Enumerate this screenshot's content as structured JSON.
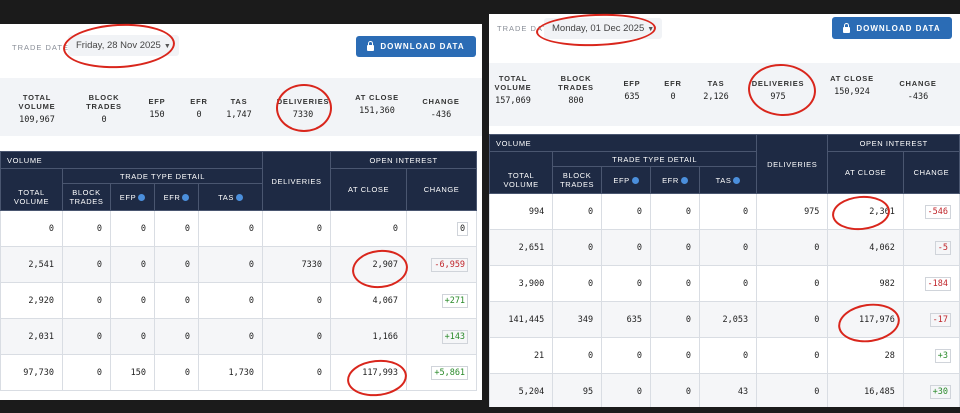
{
  "left": {
    "trade_date_label": "TRADE DATE",
    "trade_date_value": "Friday, 28 Nov 2025",
    "download_label": "DOWNLOAD DATA",
    "summary": {
      "total_volume": {
        "label": "TOTAL VOLUME",
        "value": "109,967"
      },
      "block_trades": {
        "label": "BLOCK TRADES",
        "value": "0"
      },
      "efp": {
        "label": "EFP",
        "value": "150"
      },
      "efr": {
        "label": "EFR",
        "value": "0"
      },
      "tas": {
        "label": "TAS",
        "value": "1,747"
      },
      "deliveries": {
        "label": "DELIVERIES",
        "value": "7330"
      },
      "at_close": {
        "label": "AT CLOSE",
        "value": "151,360"
      },
      "change": {
        "label": "CHANGE",
        "value": "-436"
      }
    },
    "table": {
      "group_volume": "VOLUME",
      "group_trade_type": "TRADE TYPE DETAIL",
      "group_deliveries": "DELIVERIES",
      "group_open_interest": "OPEN INTEREST",
      "col_total_volume": "TOTAL VOLUME",
      "col_block_trades": "BLOCK TRADES",
      "col_efp": "EFP",
      "col_efr": "EFR",
      "col_tas": "TAS",
      "col_at_close": "AT CLOSE",
      "col_change": "CHANGE",
      "rows": [
        [
          "0",
          "0",
          "0",
          "0",
          "0",
          "0",
          "0",
          "0"
        ],
        [
          "2,541",
          "0",
          "0",
          "0",
          "0",
          "7330",
          "2,907",
          "-6,959"
        ],
        [
          "2,920",
          "0",
          "0",
          "0",
          "0",
          "0",
          "4,067",
          "+271"
        ],
        [
          "2,031",
          "0",
          "0",
          "0",
          "0",
          "0",
          "1,166",
          "+143"
        ],
        [
          "97,730",
          "0",
          "150",
          "0",
          "1,730",
          "0",
          "117,993",
          "+5,861"
        ]
      ]
    }
  },
  "right": {
    "trade_date_label": "TRADE DATE",
    "trade_date_value": "Monday, 01 Dec 2025",
    "download_label": "DOWNLOAD DATA",
    "summary": {
      "total_volume": {
        "label": "TOTAL VOLUME",
        "value": "157,069"
      },
      "block_trades": {
        "label": "BLOCK TRADES",
        "value": "800"
      },
      "efp": {
        "label": "EFP",
        "value": "635"
      },
      "efr": {
        "label": "EFR",
        "value": "0"
      },
      "tas": {
        "label": "TAS",
        "value": "2,126"
      },
      "deliveries": {
        "label": "DELIVERIES",
        "value": "975"
      },
      "at_close": {
        "label": "AT CLOSE",
        "value": "150,924"
      },
      "change": {
        "label": "CHANGE",
        "value": "-436"
      }
    },
    "table": {
      "group_volume": "VOLUME",
      "group_trade_type": "TRADE TYPE DETAIL",
      "group_deliveries": "DELIVERIES",
      "group_open_interest": "OPEN INTEREST",
      "col_total_volume": "TOTAL VOLUME",
      "col_block_trades": "BLOCK TRADES",
      "col_efp": "EFP",
      "col_efr": "EFR",
      "col_tas": "TAS",
      "col_at_close": "AT CLOSE",
      "col_change": "CHANGE",
      "rows": [
        [
          "994",
          "0",
          "0",
          "0",
          "0",
          "975",
          "2,361",
          "-546"
        ],
        [
          "2,651",
          "0",
          "0",
          "0",
          "0",
          "0",
          "4,062",
          "-5"
        ],
        [
          "3,900",
          "0",
          "0",
          "0",
          "0",
          "0",
          "982",
          "-184"
        ],
        [
          "141,445",
          "349",
          "635",
          "0",
          "2,053",
          "0",
          "117,976",
          "-17"
        ],
        [
          "21",
          "0",
          "0",
          "0",
          "0",
          "0",
          "28",
          "+3"
        ],
        [
          "5,204",
          "95",
          "0",
          "0",
          "43",
          "0",
          "16,485",
          "+30"
        ]
      ]
    }
  },
  "colors": {
    "header_navy": "#1e2a44",
    "button_blue": "#2b6cb5",
    "negative_red": "#c0262b",
    "positive_green": "#2a8a2a",
    "annotation_red": "#d9261c"
  }
}
